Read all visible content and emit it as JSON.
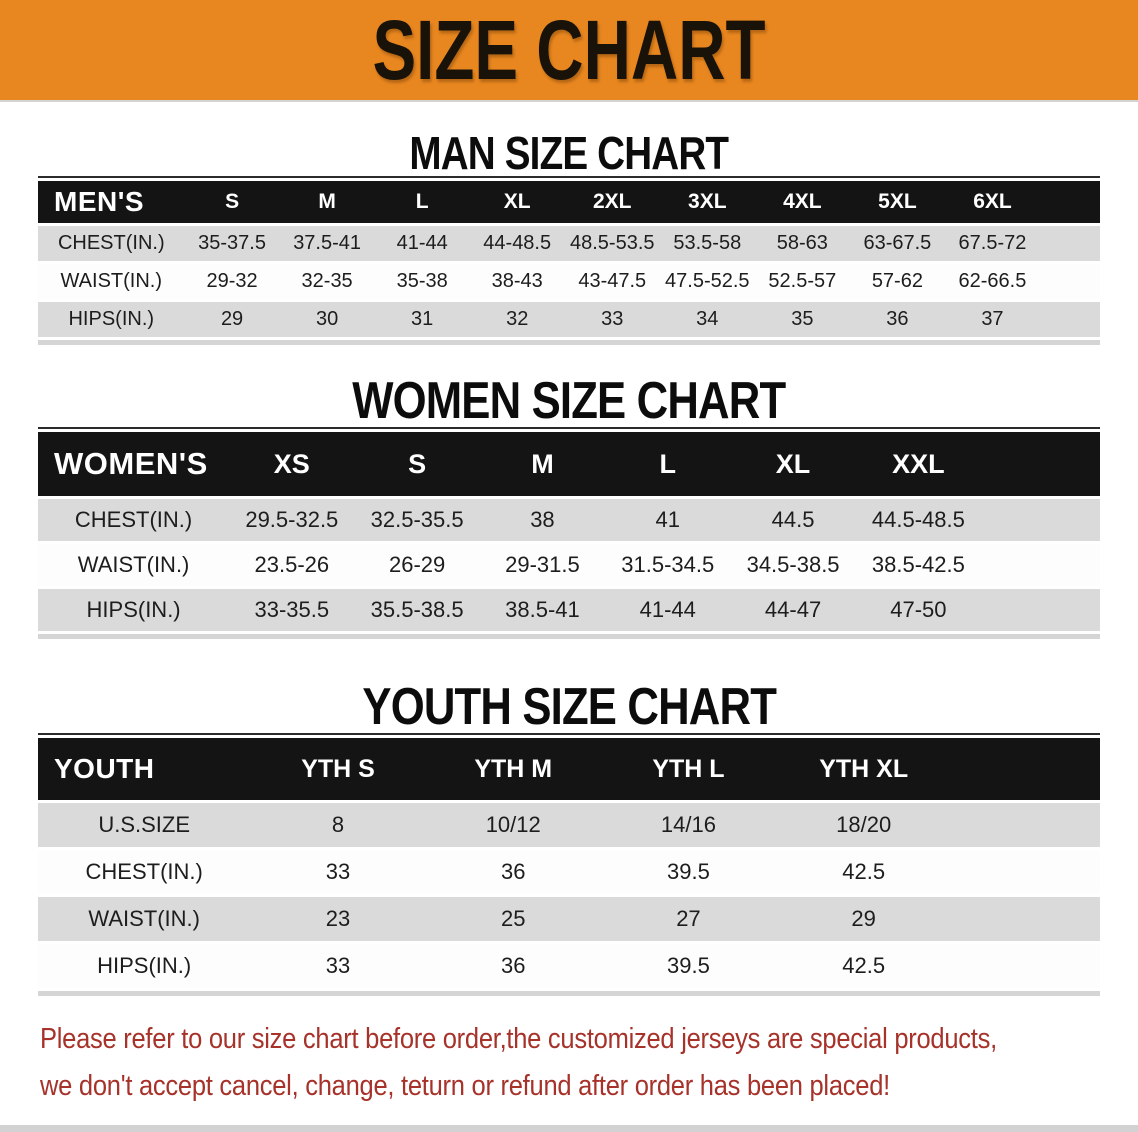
{
  "banner": {
    "title": "SIZE CHART",
    "bg_color": "#E8861F"
  },
  "sections": {
    "men": {
      "title": "MAN SIZE CHART",
      "table": {
        "corner_label": "MEN'S",
        "columns": [
          "S",
          "M",
          "L",
          "XL",
          "2XL",
          "3XL",
          "4XL",
          "5XL",
          "6XL"
        ],
        "rows": [
          {
            "label": "CHEST(IN.)",
            "values": [
              "35-37.5",
              "37.5-41",
              "41-44",
              "44-48.5",
              "48.5-53.5",
              "53.5-58",
              "58-63",
              "63-67.5",
              "67.5-72"
            ]
          },
          {
            "label": "WAIST(IN.)",
            "values": [
              "29-32",
              "32-35",
              "35-38",
              "38-43",
              "43-47.5",
              "47.5-52.5",
              "52.5-57",
              "57-62",
              "62-66.5"
            ]
          },
          {
            "label": "HIPS(IN.)",
            "values": [
              "29",
              "30",
              "31",
              "32",
              "33",
              "34",
              "35",
              "36",
              "37"
            ]
          }
        ]
      }
    },
    "women": {
      "title": "WOMEN SIZE CHART",
      "table": {
        "corner_label": "WOMEN'S",
        "columns": [
          "XS",
          "S",
          "M",
          "L",
          "XL",
          "XXL"
        ],
        "rows": [
          {
            "label": "CHEST(IN.)",
            "values": [
              "29.5-32.5",
              "32.5-35.5",
              "38",
              "41",
              "44.5",
              "44.5-48.5"
            ]
          },
          {
            "label": "WAIST(IN.)",
            "values": [
              "23.5-26",
              "26-29",
              "29-31.5",
              "31.5-34.5",
              "34.5-38.5",
              "38.5-42.5"
            ]
          },
          {
            "label": "HIPS(IN.)",
            "values": [
              "33-35.5",
              "35.5-38.5",
              "38.5-41",
              "41-44",
              "44-47",
              "47-50"
            ]
          }
        ]
      }
    },
    "youth": {
      "title": "YOUTH SIZE CHART",
      "table": {
        "corner_label": "YOUTH",
        "columns": [
          "YTH S",
          "YTH M",
          "YTH L",
          "YTH XL"
        ],
        "rows": [
          {
            "label": "U.S.SIZE",
            "values": [
              "8",
              "10/12",
              "14/16",
              "18/20"
            ]
          },
          {
            "label": "CHEST(IN.)",
            "values": [
              "33",
              "36",
              "39.5",
              "42.5"
            ]
          },
          {
            "label": "WAIST(IN.)",
            "values": [
              "23",
              "25",
              "27",
              "29"
            ]
          },
          {
            "label": "HIPS(IN.)",
            "values": [
              "33",
              "36",
              "39.5",
              "42.5"
            ]
          }
        ]
      }
    }
  },
  "note": {
    "color": "#A6322A",
    "lines": [
      "Please refer to our size chart before order,the customized jerseys are special products,",
      "we don't accept cancel, change, teturn or refund after order has been placed!"
    ]
  }
}
